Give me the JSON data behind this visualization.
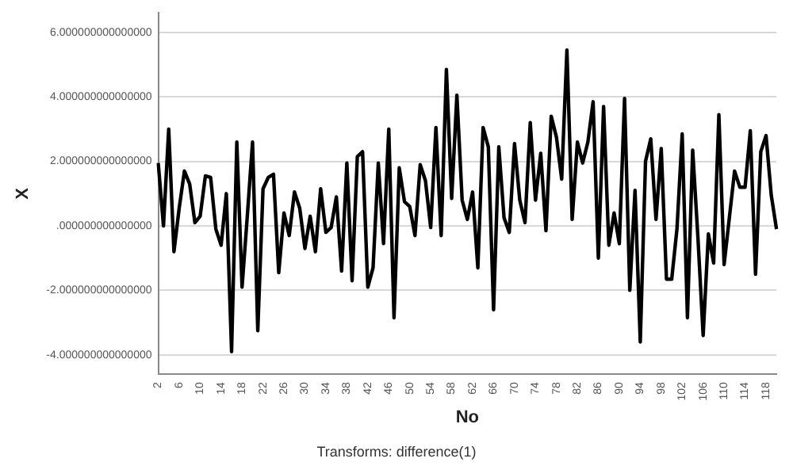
{
  "chart_data": {
    "type": "line",
    "xlabel": "No",
    "ylabel": "X",
    "annotations": [
      "Transforms: difference(1)"
    ],
    "categories": [
      "2",
      null,
      null,
      null,
      "6",
      null,
      null,
      null,
      "10",
      null,
      null,
      null,
      "14",
      null,
      null,
      null,
      "18",
      null,
      null,
      null,
      "22",
      null,
      null,
      null,
      "26",
      null,
      null,
      null,
      "30",
      null,
      null,
      null,
      "34",
      null,
      null,
      null,
      "38",
      null,
      null,
      null,
      "42",
      null,
      null,
      null,
      "46",
      null,
      null,
      null,
      "50",
      null,
      null,
      null,
      "54",
      null,
      null,
      null,
      "58",
      null,
      null,
      null,
      "62",
      null,
      null,
      null,
      "66",
      null,
      null,
      null,
      "70",
      null,
      null,
      null,
      "74",
      null,
      null,
      null,
      "78",
      null,
      null,
      null,
      "82",
      null,
      null,
      null,
      "86",
      null,
      null,
      null,
      "90",
      null,
      null,
      null,
      "94",
      null,
      null,
      null,
      "98",
      null,
      null,
      null,
      "102",
      null,
      null,
      null,
      "106",
      null,
      null,
      null,
      "110",
      null,
      null,
      null,
      "114",
      null,
      null,
      null,
      "118",
      null,
      null
    ],
    "series": [
      {
        "color": "#000000",
        "values": [
          1.95,
          0.0,
          3.0,
          -0.8,
          0.55,
          1.7,
          1.3,
          0.1,
          0.3,
          1.55,
          1.5,
          -0.1,
          -0.6,
          1.0,
          -3.9,
          2.6,
          -1.9,
          0.3,
          2.6,
          -3.25,
          1.15,
          1.5,
          1.6,
          -1.45,
          0.4,
          -0.3,
          1.05,
          0.55,
          -0.7,
          0.3,
          -0.8,
          1.15,
          -0.2,
          -0.05,
          0.9,
          -1.4,
          1.95,
          -1.7,
          2.15,
          2.3,
          -1.9,
          -1.3,
          1.95,
          -0.55,
          3.0,
          -2.85,
          1.8,
          0.75,
          0.6,
          -0.3,
          1.9,
          1.4,
          -0.05,
          3.05,
          -0.3,
          4.85,
          0.85,
          4.05,
          0.8,
          0.2,
          1.05,
          -1.3,
          3.05,
          2.45,
          -2.6,
          2.45,
          0.25,
          -0.2,
          2.55,
          0.8,
          0.1,
          3.2,
          0.8,
          2.25,
          -0.15,
          3.4,
          2.75,
          1.45,
          5.45,
          0.2,
          2.6,
          1.95,
          2.6,
          3.85,
          -1.0,
          3.7,
          -0.6,
          0.4,
          -0.55,
          3.95,
          -2.0,
          1.1,
          -3.6,
          2.0,
          2.7,
          0.2,
          2.4,
          -1.65,
          -1.65,
          -0.1,
          2.85,
          -2.85,
          2.35,
          -0.35,
          -3.4,
          -0.25,
          -1.15,
          3.45,
          -1.2,
          0.25,
          1.7,
          1.2,
          1.2,
          2.95,
          -1.5,
          2.3,
          2.8,
          0.95,
          -0.1
        ]
      }
    ],
    "ylim": [
      -4.6,
      6.6
    ],
    "yticks": [
      {
        "value": -4,
        "label": "-4.000000000000000"
      },
      {
        "value": -2,
        "label": "-2.000000000000000"
      },
      {
        "value": 0,
        "label": ".000000000000000"
      },
      {
        "value": 2,
        "label": "2.000000000000000"
      },
      {
        "value": 4,
        "label": "4.000000000000000"
      },
      {
        "value": 6,
        "label": "6.000000000000000"
      }
    ],
    "grid": "y",
    "legend": false,
    "marker": "none",
    "line_style": "solid"
  }
}
